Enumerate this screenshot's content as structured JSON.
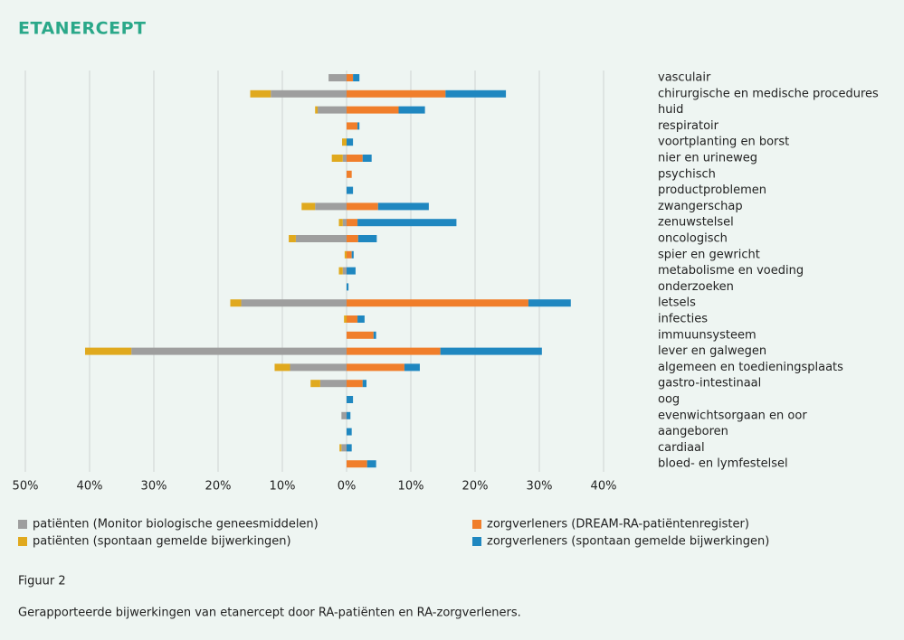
{
  "chart_data": {
    "type": "diverging-stacked-bar",
    "title": "ETANERCEPT",
    "categories": [
      "vasculair",
      "chirurgische en medische procedures",
      "huid",
      "respiratoir",
      "voortplanting en borst",
      "nier en urineweg",
      "psychisch",
      "productproblemen",
      "zwangerschap",
      "zenuwstelsel",
      "oncologisch",
      "spier en gewricht",
      "metabolisme en voeding",
      "onderzoeken",
      "letsels",
      "infecties",
      "immuunsysteem",
      "lever en galwegen",
      "algemeen en toedieningsplaats",
      "gastro-intestinaal",
      "oog",
      "evenwichtsorgaan en oor",
      "aangeboren",
      "cardiaal",
      "bloed- en lymfestelsel"
    ],
    "series": [
      {
        "name": "patiënten (Monitor biologische geneesmiddelen)",
        "color": "#9e9e9e",
        "values": [
          -2.8,
          -11.8,
          -4.5,
          0,
          0,
          -0.6,
          0,
          0,
          -4.9,
          -0.6,
          -7.9,
          0,
          -0.6,
          0,
          -16.4,
          0,
          0,
          -33.5,
          -8.8,
          -4.1,
          0,
          -0.8,
          0,
          -0.8,
          0
        ]
      },
      {
        "name": "patiënten (spontaan gemelde bijwerkingen)",
        "color": "#e0a91e",
        "values": [
          0,
          -3.2,
          -0.4,
          0,
          -0.7,
          -1.7,
          0,
          0,
          -2.1,
          -0.6,
          -1.1,
          -0.3,
          -0.6,
          0,
          -1.7,
          -0.4,
          0,
          -7.2,
          -2.4,
          -1.5,
          0,
          0,
          0,
          -0.3,
          0
        ]
      },
      {
        "name": "zorgverleners (DREAM-RA-patiëntenregister)",
        "color": "#f07e2b",
        "values": [
          1.0,
          15.4,
          8.1,
          1.7,
          0,
          2.5,
          0.8,
          0,
          4.9,
          1.7,
          1.8,
          0.8,
          0,
          0,
          28.3,
          1.7,
          4.2,
          14.6,
          9.0,
          2.5,
          0,
          0,
          0,
          0,
          3.2
        ]
      },
      {
        "name": "zorgverleners (spontaan gemelde bijwerkingen)",
        "color": "#1f87c0",
        "values": [
          1.0,
          9.4,
          4.1,
          0.3,
          1.0,
          1.4,
          0,
          1.0,
          7.9,
          15.4,
          2.9,
          0.3,
          1.4,
          0.3,
          6.6,
          1.1,
          0.4,
          15.8,
          2.4,
          0.6,
          1.0,
          0.6,
          0.8,
          0.8,
          1.4
        ]
      }
    ],
    "xlim": [
      -50,
      40
    ],
    "xticks": [
      {
        "value": -50,
        "label": "50%"
      },
      {
        "value": -40,
        "label": "40%"
      },
      {
        "value": -30,
        "label": "30%"
      },
      {
        "value": -20,
        "label": "20%"
      },
      {
        "value": -10,
        "label": "10%"
      },
      {
        "value": 0,
        "label": "0%"
      },
      {
        "value": 10,
        "label": "10%"
      },
      {
        "value": 20,
        "label": "20%"
      },
      {
        "value": 30,
        "label": "30%"
      },
      {
        "value": 40,
        "label": "40%"
      }
    ],
    "grid": true,
    "figure_label": "Figuur 2",
    "caption": "Gerapporteerde bijwerkingen van etanercept door RA-patiënten en RA-zorgverleners."
  }
}
